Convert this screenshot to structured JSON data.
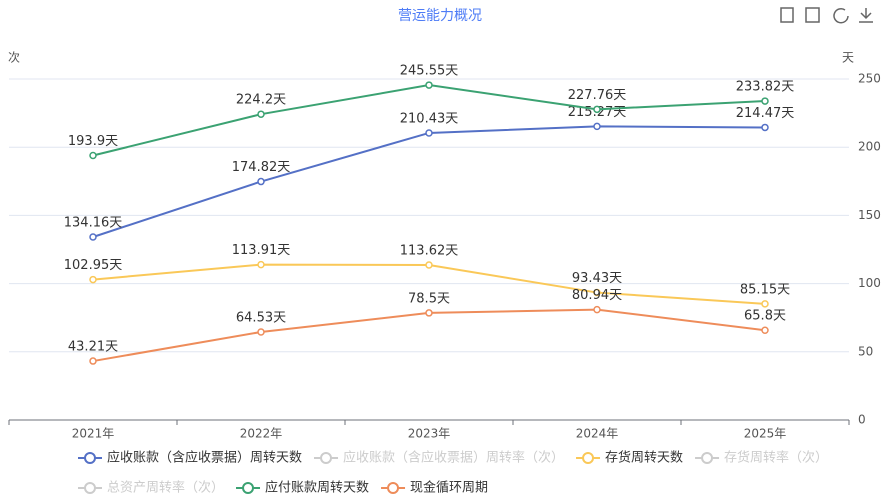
{
  "chart_data": {
    "type": "line",
    "title": "营运能力概况",
    "y_axis_label": "次",
    "y2_axis_label": "天",
    "categories": [
      "2021年",
      "2022年",
      "2023年",
      "2024年",
      "2025年"
    ],
    "y2lim": [
      0,
      250
    ],
    "y2ticks": [
      0,
      50,
      100,
      150,
      200,
      250
    ],
    "grid": true,
    "legend": "bottom",
    "series": [
      {
        "name": "应收账款（含应收票据）周转天数",
        "color": "#5470c6",
        "axis": "y2",
        "visible": true,
        "values": [
          134.16,
          174.82,
          210.43,
          215.27,
          214.47
        ],
        "value_labels": [
          "134.16天",
          "174.82天",
          "210.43天",
          "215.27天",
          "214.47天"
        ]
      },
      {
        "name": "应收账款（含应收票据）周转率（次）",
        "color": "#cccccc",
        "visible": false,
        "values": [
          null,
          null,
          null,
          null,
          null
        ]
      },
      {
        "name": "存货周转天数",
        "color": "#fac858",
        "axis": "y2",
        "visible": true,
        "values": [
          102.95,
          113.91,
          113.62,
          93.43,
          85.15
        ],
        "value_labels": [
          "102.95天",
          "113.91天",
          "113.62天",
          "93.43天",
          "85.15天"
        ]
      },
      {
        "name": "存货周转率（次）",
        "color": "#cccccc",
        "visible": false,
        "values": [
          null,
          null,
          null,
          null,
          null
        ]
      },
      {
        "name": "总资产周转率（次）",
        "color": "#cccccc",
        "visible": false,
        "values": [
          null,
          null,
          null,
          null,
          null
        ]
      },
      {
        "name": "应付账款周转天数",
        "color": "#3ba272",
        "axis": "y2",
        "visible": true,
        "values": [
          193.9,
          224.2,
          245.55,
          227.76,
          233.82
        ],
        "value_labels": [
          "193.9天",
          "224.2天",
          "245.55天",
          "227.76天",
          "233.82天"
        ]
      },
      {
        "name": "现金循环周期",
        "color": "#ee8c5a",
        "axis": "y2",
        "visible": true,
        "values": [
          43.21,
          64.53,
          78.5,
          80.94,
          65.8
        ],
        "value_labels": [
          "43.21天",
          "64.53天",
          "78.5天",
          "80.94天",
          "65.8天"
        ]
      }
    ]
  }
}
